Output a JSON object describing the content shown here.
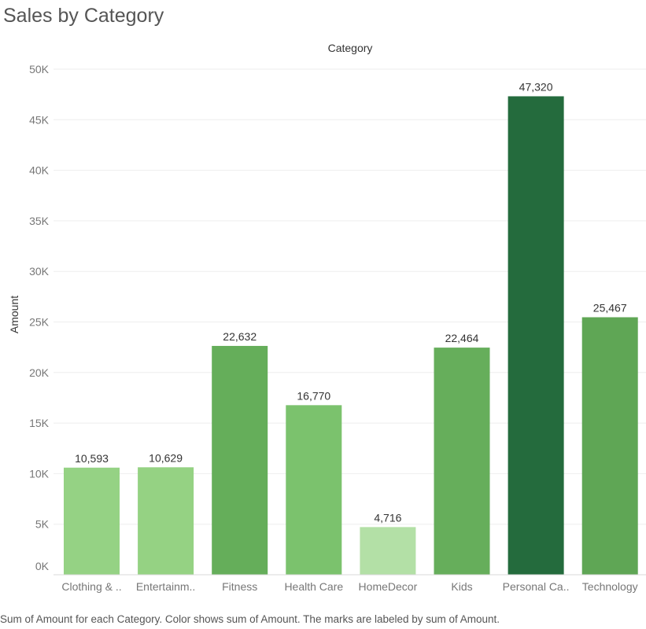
{
  "chart_data": {
    "type": "bar",
    "title": "Sales by Category",
    "column_header": "Category",
    "ylabel": "Amount",
    "ylim": [
      0,
      50000
    ],
    "yticks": [
      0,
      5000,
      10000,
      15000,
      20000,
      25000,
      30000,
      35000,
      40000,
      45000,
      50000
    ],
    "ytick_labels": [
      "0K",
      "5K",
      "10K",
      "15K",
      "20K",
      "25K",
      "30K",
      "35K",
      "40K",
      "45K",
      "50K"
    ],
    "categories": [
      "Clothing & ..",
      "Entertainm..",
      "Fitness",
      "Health Care",
      "HomeDecor",
      "Kids",
      "Personal Ca..",
      "Technology"
    ],
    "values": [
      10593,
      10629,
      22632,
      16770,
      4716,
      22464,
      47320,
      25467
    ],
    "value_labels": [
      "10,593",
      "10,629",
      "22,632",
      "16,770",
      "4,716",
      "22,464",
      "47,320",
      "25,467"
    ],
    "color_scale": [
      "#b3e0a6",
      "#95d283",
      "#7bc26d",
      "#67b05c",
      "#5ea454",
      "#246b3d"
    ],
    "grid": true,
    "legend": "none"
  },
  "footnote": "Sum of Amount for each Category.  Color shows sum of Amount.  The marks are labeled by sum of Amount."
}
